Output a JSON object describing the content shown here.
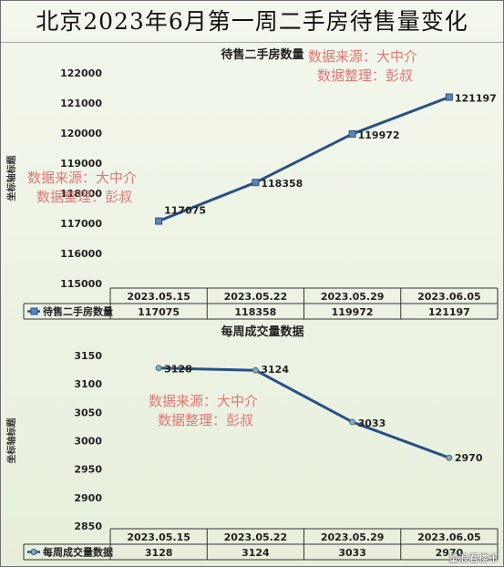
{
  "header": {
    "title": "北京2023年6月第一周二手房待售量变化"
  },
  "watermark": {
    "line1": "数据来源：大中介",
    "line2": "数据整理：彭叔"
  },
  "credit": "量浪看楼市",
  "colors": {
    "line": "#2a4f86",
    "marker_fill": "#5c86b4",
    "marker_fill_2": "#7fb0b8",
    "background": "#eef4e6"
  },
  "chart_data": [
    {
      "type": "line",
      "title": "待售二手房数量",
      "ylabel": "坐标轴标题",
      "categories": [
        "2023.05.15",
        "2023.05.22",
        "2023.05.29",
        "2023.06.05"
      ],
      "series": [
        {
          "name": "待售二手房数量",
          "values": [
            117075,
            118358,
            119972,
            121197
          ]
        }
      ],
      "ylim": [
        115000,
        122000
      ],
      "yticks": [
        "115000",
        "116000",
        "117000",
        "118000",
        "119000",
        "120000",
        "121000",
        "122000"
      ],
      "marker": "square",
      "data_table": true,
      "grid": false
    },
    {
      "type": "line",
      "title": "每周成交量数据",
      "ylabel": "坐标轴标题",
      "categories": [
        "2023.05.15",
        "2023.05.22",
        "2023.05.29",
        "2023.06.05"
      ],
      "series": [
        {
          "name": "每周成交量数据",
          "values": [
            3128,
            3124,
            3033,
            2970
          ]
        }
      ],
      "ylim": [
        2850,
        3150
      ],
      "yticks": [
        "2850",
        "2900",
        "2950",
        "3000",
        "3050",
        "3100",
        "3150"
      ],
      "marker": "circle",
      "data_table": true,
      "grid": false
    }
  ]
}
